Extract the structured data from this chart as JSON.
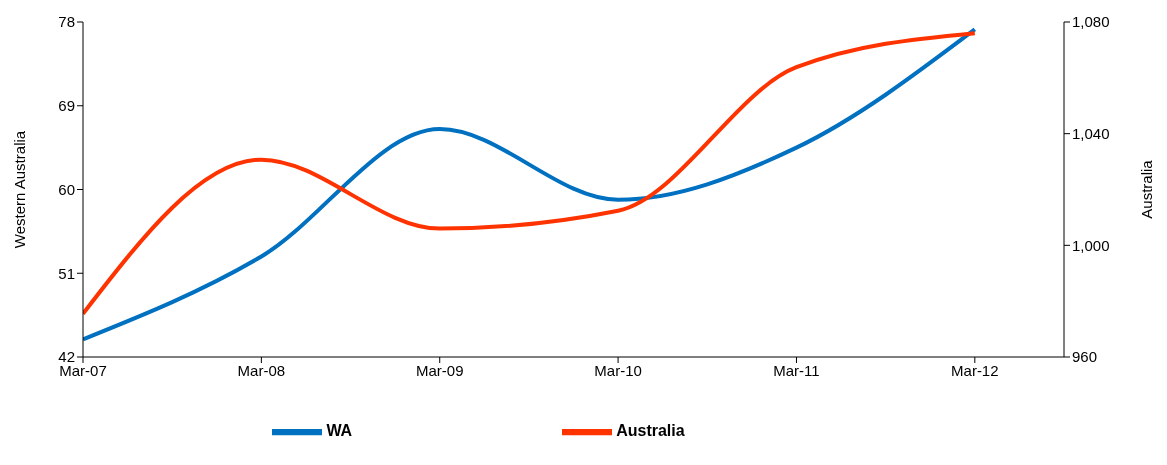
{
  "chart_data": {
    "type": "line",
    "ylabel": "Western Australia",
    "y2label": "Australia",
    "x": [
      "2007-03",
      "2008-03",
      "2009-03",
      "2010-03",
      "2011-03",
      "2012-03"
    ],
    "xlim": [
      "2007-03",
      "2012-09"
    ],
    "xticks": [
      {
        "value": "2007-03",
        "label": "Mar-07"
      },
      {
        "value": "2008-03",
        "label": "Mar-08"
      },
      {
        "value": "2009-03",
        "label": "Mar-09"
      },
      {
        "value": "2010-03",
        "label": "Mar-10"
      },
      {
        "value": "2011-03",
        "label": "Mar-11"
      },
      {
        "value": "2012-03",
        "label": "Mar-12"
      }
    ],
    "ylim": [
      42,
      78
    ],
    "yticks": [
      42,
      51,
      60,
      69,
      78
    ],
    "y2lim": [
      960,
      1080
    ],
    "y2ticks": [
      {
        "value": 960,
        "label": "960"
      },
      {
        "value": 1000,
        "label": "1,000"
      },
      {
        "value": 1040,
        "label": "1,040"
      },
      {
        "value": 1080,
        "label": "1,080"
      }
    ],
    "series": [
      {
        "name": "WA",
        "color": "#0070c0",
        "values": [
          43.9,
          52.8,
          66.5,
          58.9,
          64.5,
          77.2
        ]
      },
      {
        "name": "Australia",
        "color": "#ff3300",
        "axis": "y2",
        "values": [
          975.5,
          1030.7,
          1006,
          1012.4,
          1063.8,
          1076
        ]
      }
    ],
    "legend": "bottom",
    "grid": false,
    "marker": "none",
    "line_style": "solid"
  }
}
